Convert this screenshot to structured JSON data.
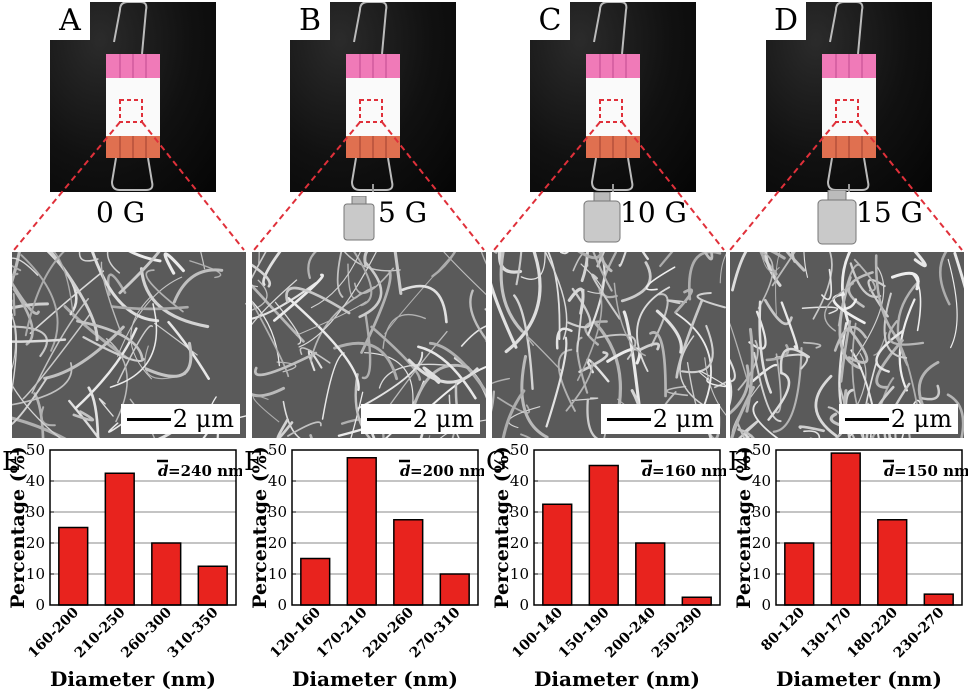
{
  "photos": [
    {
      "label": "A",
      "weight": "0 G"
    },
    {
      "label": "B",
      "weight": "5 G"
    },
    {
      "label": "C",
      "weight": "10 G"
    },
    {
      "label": "D",
      "weight": "15 G"
    }
  ],
  "sem": {
    "scale_label": "2 μm"
  },
  "colors": {
    "bar": "#e8231e",
    "grid": "#8a8a8a",
    "clip_pink": "#f07ab8",
    "clip_orange": "#e07050",
    "dashed": "#e0303a"
  },
  "chart_data": [
    {
      "panel": "E",
      "type": "bar",
      "categories": [
        "160-200",
        "210-250",
        "260-300",
        "310-350"
      ],
      "values": [
        25,
        42.5,
        20,
        12.5
      ],
      "annotation": "=240 nm",
      "ylabel": "Percentage (%)",
      "xlabel": "Diameter (nm)",
      "ylim": [
        0,
        50
      ],
      "yticks": [
        0,
        10,
        20,
        30,
        40,
        50
      ],
      "grid": true
    },
    {
      "panel": "F",
      "type": "bar",
      "categories": [
        "120-160",
        "170-210",
        "220-260",
        "270-310"
      ],
      "values": [
        15,
        47.5,
        27.5,
        10
      ],
      "annotation": "=200 nm",
      "ylabel": "Percentage (%)",
      "xlabel": "Diameter (nm)",
      "ylim": [
        0,
        50
      ],
      "yticks": [
        0,
        10,
        20,
        30,
        40,
        50
      ],
      "grid": true
    },
    {
      "panel": "G",
      "type": "bar",
      "categories": [
        "100-140",
        "150-190",
        "200-240",
        "250-290"
      ],
      "values": [
        32.5,
        45,
        20,
        2.5
      ],
      "annotation": "=160 nm",
      "ylabel": "Percentage (%)",
      "xlabel": "Diameter (nm)",
      "ylim": [
        0,
        50
      ],
      "yticks": [
        0,
        10,
        20,
        30,
        40,
        50
      ],
      "grid": true
    },
    {
      "panel": "H",
      "type": "bar",
      "categories": [
        "80-120",
        "130-170",
        "180-220",
        "230-270"
      ],
      "values": [
        20,
        49,
        27.5,
        3.5
      ],
      "annotation": "=150 nm",
      "ylabel": "Percentage (%)",
      "xlabel": "Diameter (nm)",
      "ylim": [
        0,
        50
      ],
      "yticks": [
        0,
        10,
        20,
        30,
        40,
        50
      ],
      "grid": true
    }
  ]
}
